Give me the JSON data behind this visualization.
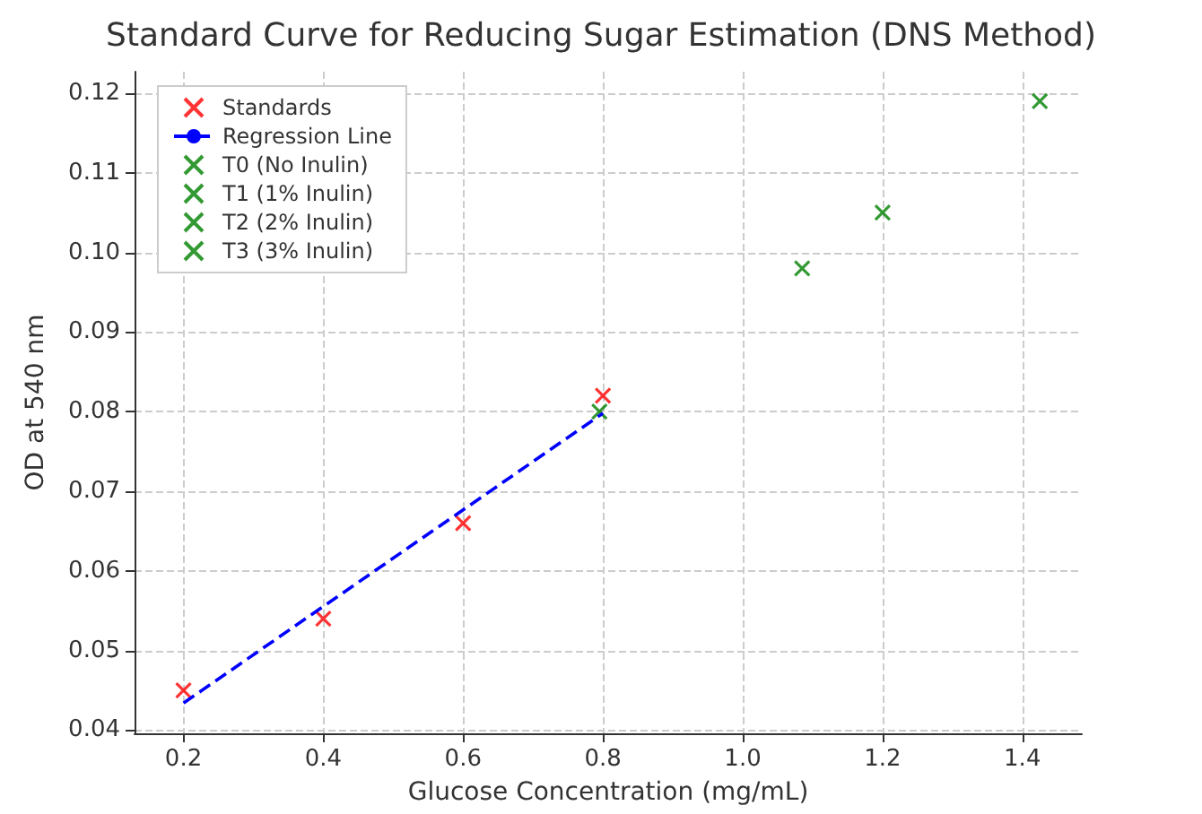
{
  "chart_data": {
    "type": "scatter",
    "title": "Standard Curve for Reducing Sugar Estimation (DNS Method)",
    "xlabel": "Glucose Concentration (mg/mL)",
    "ylabel": "OD at 540 nm",
    "xlim": [
      0.13,
      1.485
    ],
    "ylim": [
      0.0396,
      0.1227
    ],
    "xticks": [
      0.2,
      0.4,
      0.6,
      0.8,
      {
        "value": 1,
        "label": "1.0"
      },
      1.2,
      1.4
    ],
    "yticks": [
      0.04,
      0.05,
      0.06,
      0.07,
      0.08,
      0.09,
      {
        "value": 0.1,
        "label": "0.10"
      },
      0.11,
      0.12
    ],
    "grid": true,
    "legend": "top left",
    "marker": "cross",
    "series": [
      {
        "name": "Standards",
        "color": "#ff0000",
        "x": [
          0.2,
          0.4,
          0.6,
          0.8
        ],
        "values": [
          0.045,
          0.054,
          0.066,
          0.082
        ]
      },
      {
        "name": "Regression Line",
        "type": "line",
        "marker": "none",
        "line_style": "dashed",
        "color": "#0000ff",
        "x": [
          0.2,
          0.8
        ],
        "values": [
          0.0434,
          0.0798
        ]
      },
      {
        "name": "T0 (No Inulin)",
        "color": "#008000",
        "x": [
          0.795
        ],
        "values": [
          0.08
        ]
      },
      {
        "name": "T1 (1% Inulin)",
        "color": "#008000",
        "x": [
          1.085
        ],
        "values": [
          0.098
        ]
      },
      {
        "name": "T2 (2% Inulin)",
        "color": "#008000",
        "x": [
          1.2
        ],
        "values": [
          0.105
        ]
      },
      {
        "name": "T3 (3% Inulin)",
        "color": "#008000",
        "x": [
          1.425
        ],
        "values": [
          0.119
        ]
      }
    ]
  }
}
